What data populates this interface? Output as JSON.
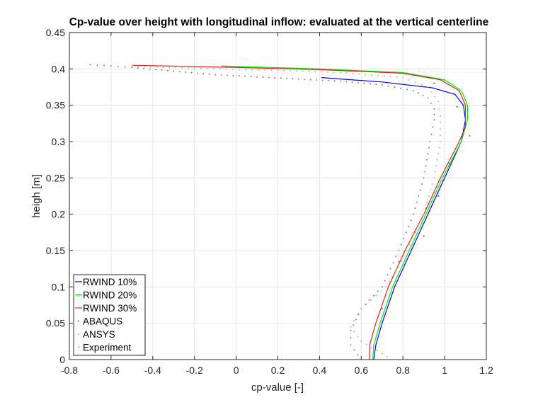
{
  "chart_data": {
    "type": "line",
    "title": "Cp-value over height with longitudinal inflow: evaluated at the vertical centerline",
    "xlabel": "cp-value [-]",
    "ylabel": "heigh [m]",
    "xlim": [
      -0.8,
      1.2
    ],
    "ylim": [
      0,
      0.45
    ],
    "xticks": [
      "-0.8",
      "-0.6",
      "-0.4",
      "-0.2",
      "0",
      "0.2",
      "0.4",
      "0.6",
      "0.8",
      "1",
      "1.2"
    ],
    "yticks": [
      "0",
      "0.05",
      "0.1",
      "0.15",
      "0.2",
      "0.25",
      "0.3",
      "0.35",
      "0.4",
      "0.45"
    ],
    "grid": true,
    "legend_position": "bottom-left",
    "series": [
      {
        "name": "RWIND 10%",
        "style": "line",
        "color": "#0000ff",
        "points": [
          [
            0.41,
            0.388
          ],
          [
            0.7,
            0.382
          ],
          [
            0.94,
            0.374
          ],
          [
            1.05,
            0.365
          ],
          [
            1.09,
            0.35
          ],
          [
            1.1,
            0.33
          ],
          [
            1.08,
            0.3
          ],
          [
            1.0,
            0.25
          ],
          [
            0.92,
            0.2
          ],
          [
            0.84,
            0.15
          ],
          [
            0.76,
            0.1
          ],
          [
            0.7,
            0.05
          ],
          [
            0.67,
            0.02
          ],
          [
            0.66,
            0
          ]
        ]
      },
      {
        "name": "RWIND 20%",
        "style": "line",
        "color": "#00ee00",
        "points": [
          [
            -0.07,
            0.404
          ],
          [
            0.4,
            0.4
          ],
          [
            0.8,
            0.395
          ],
          [
            1.0,
            0.385
          ],
          [
            1.08,
            0.37
          ],
          [
            1.11,
            0.35
          ],
          [
            1.11,
            0.33
          ],
          [
            1.08,
            0.3
          ],
          [
            0.99,
            0.25
          ],
          [
            0.91,
            0.2
          ],
          [
            0.83,
            0.15
          ],
          [
            0.75,
            0.1
          ],
          [
            0.69,
            0.05
          ],
          [
            0.66,
            0.02
          ],
          [
            0.655,
            0
          ]
        ]
      },
      {
        "name": "RWIND 30%",
        "style": "line",
        "color": "#dd2222",
        "points": [
          [
            -0.5,
            0.405
          ],
          [
            0,
            0.402
          ],
          [
            0.4,
            0.399
          ],
          [
            0.8,
            0.394
          ],
          [
            0.98,
            0.385
          ],
          [
            1.07,
            0.37
          ],
          [
            1.1,
            0.35
          ],
          [
            1.1,
            0.32
          ],
          [
            1.07,
            0.3
          ],
          [
            0.98,
            0.25
          ],
          [
            0.9,
            0.2
          ],
          [
            0.81,
            0.15
          ],
          [
            0.73,
            0.1
          ],
          [
            0.67,
            0.05
          ],
          [
            0.64,
            0.02
          ],
          [
            0.64,
            0
          ]
        ]
      },
      {
        "name": "ABAQUS",
        "style": "dots",
        "color": "#556677",
        "points": [
          [
            -0.7,
            0.406
          ],
          [
            -0.6,
            0.404
          ],
          [
            -0.5,
            0.402
          ],
          [
            -0.3,
            0.397
          ],
          [
            -0.1,
            0.392
          ],
          [
            0.1,
            0.389
          ],
          [
            0.3,
            0.386
          ],
          [
            0.5,
            0.383
          ],
          [
            0.7,
            0.378
          ],
          [
            0.85,
            0.37
          ],
          [
            0.92,
            0.36
          ],
          [
            0.95,
            0.345
          ],
          [
            0.95,
            0.33
          ],
          [
            0.93,
            0.3
          ],
          [
            0.9,
            0.25
          ],
          [
            0.85,
            0.2
          ],
          [
            0.78,
            0.15
          ],
          [
            0.7,
            0.1
          ],
          [
            0.6,
            0.07
          ],
          [
            0.55,
            0.04
          ],
          [
            0.55,
            0.02
          ],
          [
            0.6,
            0
          ]
        ]
      },
      {
        "name": "ANSYS",
        "style": "dots",
        "color": "#b8a070",
        "points": [
          [
            -0.5,
            0.403
          ],
          [
            -0.2,
            0.401
          ],
          [
            0.2,
            0.398
          ],
          [
            0.5,
            0.395
          ],
          [
            0.8,
            0.388
          ],
          [
            0.92,
            0.375
          ],
          [
            0.97,
            0.355
          ],
          [
            0.98,
            0.335
          ],
          [
            0.98,
            0.3
          ],
          [
            0.95,
            0.25
          ],
          [
            0.9,
            0.2
          ],
          [
            0.82,
            0.15
          ],
          [
            0.72,
            0.1
          ],
          [
            0.6,
            0.07
          ],
          [
            0.55,
            0.045
          ],
          [
            0.6,
            0.025
          ],
          [
            0.75,
            0
          ]
        ]
      },
      {
        "name": "Experiment",
        "style": "markers",
        "color": "#40a0b0",
        "points": [
          [
            0.95,
            0.38
          ],
          [
            1.06,
            0.348
          ],
          [
            1.12,
            0.308
          ],
          [
            1.02,
            0.27
          ],
          [
            0.97,
            0.225
          ],
          [
            0.9,
            0.17
          ],
          [
            0.78,
            0.135
          ],
          [
            0.7,
            0.07
          ]
        ]
      }
    ]
  }
}
